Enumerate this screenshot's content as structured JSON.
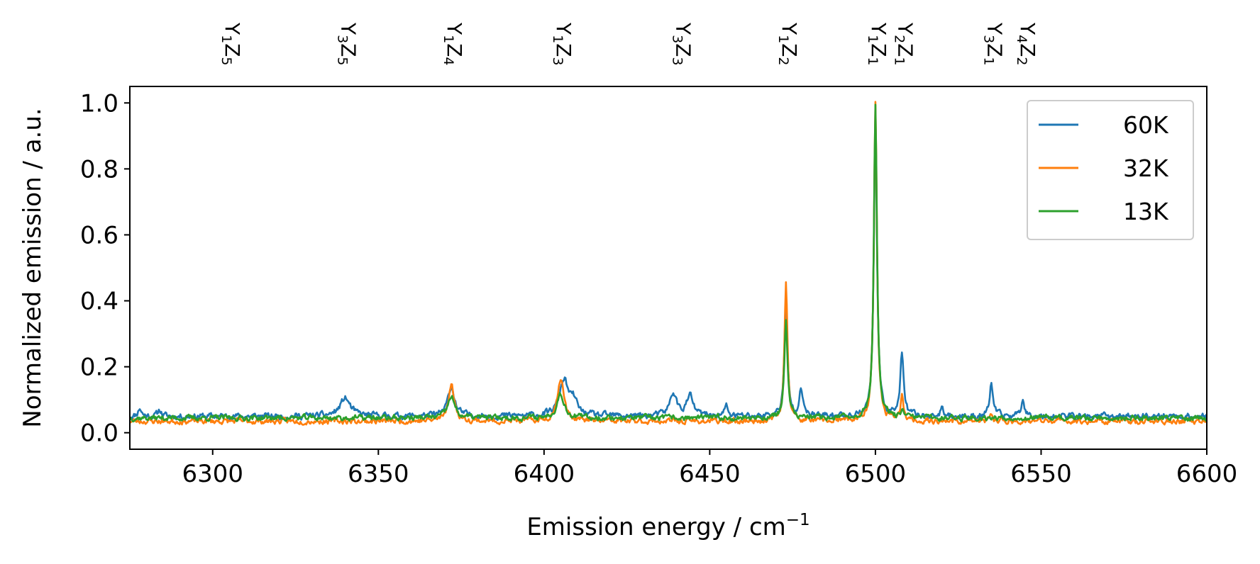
{
  "chart_data": {
    "type": "line",
    "xlabel": "Emission energy / cm",
    "xlabel_sup": "−1",
    "ylabel": "Normalized emission / a.u.",
    "xlim": [
      6275,
      6600
    ],
    "ylim": [
      -0.05,
      1.05
    ],
    "xticks": [
      6300,
      6350,
      6400,
      6450,
      6500,
      6550,
      6600
    ],
    "yticks": [
      0.0,
      0.2,
      0.4,
      0.6,
      0.8,
      1.0
    ],
    "xtick_labels": [
      "6300",
      "6350",
      "6400",
      "6450",
      "6500",
      "6550",
      "6600"
    ],
    "ytick_labels": [
      "0.0",
      "0.2",
      "0.4",
      "0.6",
      "0.8",
      "1.0"
    ],
    "legend_position": "top-right",
    "grid": false,
    "transitions": [
      {
        "x": 6305,
        "y": "1",
        "z": "5"
      },
      {
        "x": 6340,
        "y": "3",
        "z": "5"
      },
      {
        "x": 6372,
        "y": "1",
        "z": "4"
      },
      {
        "x": 6405,
        "y": "1",
        "z": "3"
      },
      {
        "x": 6441,
        "y": "3",
        "z": "3"
      },
      {
        "x": 6473,
        "y": "1",
        "z": "2"
      },
      {
        "x": 6500,
        "y": "1",
        "z": "1"
      },
      {
        "x": 6508,
        "y": "2",
        "z": "1"
      },
      {
        "x": 6535,
        "y": "3",
        "z": "1"
      },
      {
        "x": 6545,
        "y": "4",
        "z": "2"
      }
    ],
    "series": [
      {
        "name": "60K",
        "color": "#1f77b4",
        "baseline": 0.05,
        "noise": 0.01,
        "seed": 11,
        "peaks": [
          {
            "x": 6278,
            "h": 0.025,
            "w": 0.6
          },
          {
            "x": 6284,
            "h": 0.02,
            "w": 0.6
          },
          {
            "x": 6340,
            "h": 0.055,
            "w": 1.8
          },
          {
            "x": 6372,
            "h": 0.09,
            "w": 1.2
          },
          {
            "x": 6406,
            "h": 0.11,
            "w": 1.6
          },
          {
            "x": 6409,
            "h": 0.04,
            "w": 1.2
          },
          {
            "x": 6439,
            "h": 0.07,
            "w": 1.2
          },
          {
            "x": 6444,
            "h": 0.06,
            "w": 1.2
          },
          {
            "x": 6455,
            "h": 0.03,
            "w": 0.6
          },
          {
            "x": 6473,
            "h": 0.35,
            "w": 0.55
          },
          {
            "x": 6477.5,
            "h": 0.09,
            "w": 0.6
          },
          {
            "x": 6500,
            "h": 0.92,
            "w": 0.55
          },
          {
            "x": 6508,
            "h": 0.185,
            "w": 0.6
          },
          {
            "x": 6520,
            "h": 0.02,
            "w": 0.5
          },
          {
            "x": 6535,
            "h": 0.1,
            "w": 0.6
          },
          {
            "x": 6544.5,
            "h": 0.055,
            "w": 0.6
          }
        ]
      },
      {
        "name": "32K",
        "color": "#ff7f0e",
        "baseline": 0.035,
        "noise": 0.009,
        "seed": 23,
        "peaks": [
          {
            "x": 6372,
            "h": 0.11,
            "w": 1.1
          },
          {
            "x": 6405,
            "h": 0.13,
            "w": 1.2
          },
          {
            "x": 6473,
            "h": 0.42,
            "w": 0.55
          },
          {
            "x": 6500,
            "h": 0.97,
            "w": 0.55
          },
          {
            "x": 6508,
            "h": 0.075,
            "w": 0.5
          },
          {
            "x": 6535,
            "h": 0.02,
            "w": 0.5
          }
        ]
      },
      {
        "name": "13K",
        "color": "#2ca02c",
        "baseline": 0.045,
        "noise": 0.009,
        "seed": 37,
        "peaks": [
          {
            "x": 6372,
            "h": 0.065,
            "w": 1.2
          },
          {
            "x": 6405,
            "h": 0.075,
            "w": 1.3
          },
          {
            "x": 6473,
            "h": 0.3,
            "w": 0.55
          },
          {
            "x": 6500,
            "h": 0.955,
            "w": 0.55
          },
          {
            "x": 6508,
            "h": 0.02,
            "w": 0.5
          }
        ]
      }
    ]
  }
}
